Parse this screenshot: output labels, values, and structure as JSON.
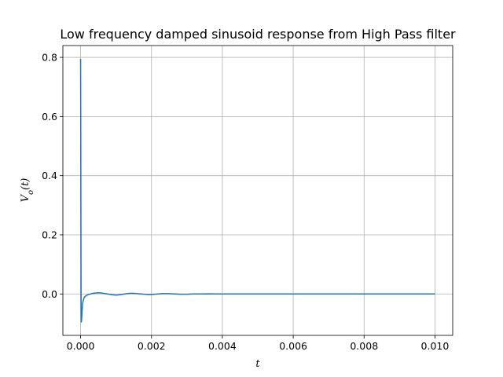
{
  "chart_data": {
    "type": "line",
    "title": "Low frequency damped sinusoid response from High Pass filter",
    "xlabel": "t",
    "ylabel": "V_o(t)",
    "xlim": [
      -0.0005,
      0.0105
    ],
    "ylim": [
      -0.14,
      0.84
    ],
    "xticks": [
      0.0,
      0.002,
      0.004,
      0.006,
      0.008,
      0.01
    ],
    "xtick_labels": [
      "0.000",
      "0.002",
      "0.004",
      "0.006",
      "0.008",
      "0.010"
    ],
    "yticks": [
      0.0,
      0.2,
      0.4,
      0.6,
      0.8
    ],
    "ytick_labels": [
      "0.0",
      "0.2",
      "0.4",
      "0.6",
      "0.8"
    ],
    "grid": true,
    "series": [
      {
        "color": "#1f77b4",
        "x": [
          0.0,
          5e-06,
          1e-05,
          1.5e-05,
          2e-05,
          3e-05,
          4e-05,
          6e-05,
          0.0001,
          0.00015,
          0.0002,
          0.0003,
          0.0004,
          0.0005,
          0.0006,
          0.0007,
          0.0008,
          0.0009,
          0.001,
          0.0011,
          0.0012,
          0.0013,
          0.0014,
          0.0015,
          0.0016,
          0.0017,
          0.0018,
          0.0019,
          0.002,
          0.0021,
          0.0022,
          0.0023,
          0.0024,
          0.0025,
          0.0026,
          0.0027,
          0.0028,
          0.0029,
          0.003,
          0.0032,
          0.0034,
          0.0036,
          0.0038,
          0.004,
          0.0045,
          0.005,
          0.006,
          0.007,
          0.008,
          0.009,
          0.01
        ],
        "y": [
          0.795,
          0.55,
          0.2,
          -0.05,
          -0.095,
          -0.085,
          -0.06,
          -0.03,
          -0.012,
          -0.006,
          -0.003,
          0.001,
          0.003,
          0.004,
          0.003,
          0.001,
          -0.001,
          -0.003,
          -0.004,
          -0.003,
          -0.001,
          0.001,
          0.002,
          0.002,
          0.001,
          0.0,
          -0.001,
          -0.002,
          -0.002,
          -0.001,
          0.0,
          0.001,
          0.001,
          0.001,
          0.0,
          0.0,
          -0.001,
          -0.001,
          -0.001,
          0.0,
          0.0,
          0.0005,
          0.0,
          0.0,
          0.0,
          0.0,
          0.0,
          0.0,
          0.0,
          0.0,
          0.0
        ]
      }
    ]
  }
}
